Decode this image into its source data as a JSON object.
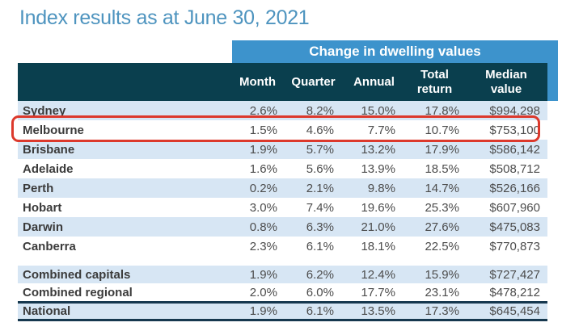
{
  "title": "Index results as at June 30, 2021",
  "table": {
    "banner": "Change in dwelling values",
    "columns": [
      "Month",
      "Quarter",
      "Annual",
      "Total return",
      "Median value"
    ],
    "city_rows": [
      {
        "name": "Sydney",
        "values": [
          "2.6%",
          "8.2%",
          "15.0%",
          "17.8%",
          "$994,298"
        ],
        "highlighted": false
      },
      {
        "name": "Melbourne",
        "values": [
          "1.5%",
          "4.6%",
          "7.7%",
          "10.7%",
          "$753,100"
        ],
        "highlighted": true
      },
      {
        "name": "Brisbane",
        "values": [
          "1.9%",
          "5.7%",
          "13.2%",
          "17.9%",
          "$586,142"
        ],
        "highlighted": false
      },
      {
        "name": "Adelaide",
        "values": [
          "1.6%",
          "5.6%",
          "13.9%",
          "18.5%",
          "$508,712"
        ],
        "highlighted": false
      },
      {
        "name": "Perth",
        "values": [
          "0.2%",
          "2.1%",
          "9.8%",
          "14.7%",
          "$526,166"
        ],
        "highlighted": false
      },
      {
        "name": "Hobart",
        "values": [
          "3.0%",
          "7.4%",
          "19.6%",
          "25.3%",
          "$607,960"
        ],
        "highlighted": false
      },
      {
        "name": "Darwin",
        "values": [
          "0.8%",
          "6.3%",
          "21.0%",
          "27.6%",
          "$475,083"
        ],
        "highlighted": false
      },
      {
        "name": "Canberra",
        "values": [
          "2.3%",
          "6.1%",
          "18.1%",
          "22.5%",
          "$770,873"
        ],
        "highlighted": false
      }
    ],
    "summary_rows": [
      {
        "name": "Combined capitals",
        "values": [
          "1.9%",
          "6.2%",
          "12.4%",
          "15.9%",
          "$727,427"
        ]
      },
      {
        "name": "Combined regional",
        "values": [
          "2.0%",
          "6.0%",
          "17.7%",
          "23.1%",
          "$478,212"
        ]
      }
    ],
    "national_row": {
      "name": "National",
      "values": [
        "1.9%",
        "6.1%",
        "13.5%",
        "17.3%",
        "$645,454"
      ]
    }
  },
  "colors": {
    "title_blue": "#4e94bf",
    "banner_blue": "#3d93cc",
    "header_dark_teal": "#0a3f4e",
    "row_shade_blue": "#d7e6f4",
    "highlight_red": "#dc392c",
    "national_border_navy": "#16384f"
  }
}
